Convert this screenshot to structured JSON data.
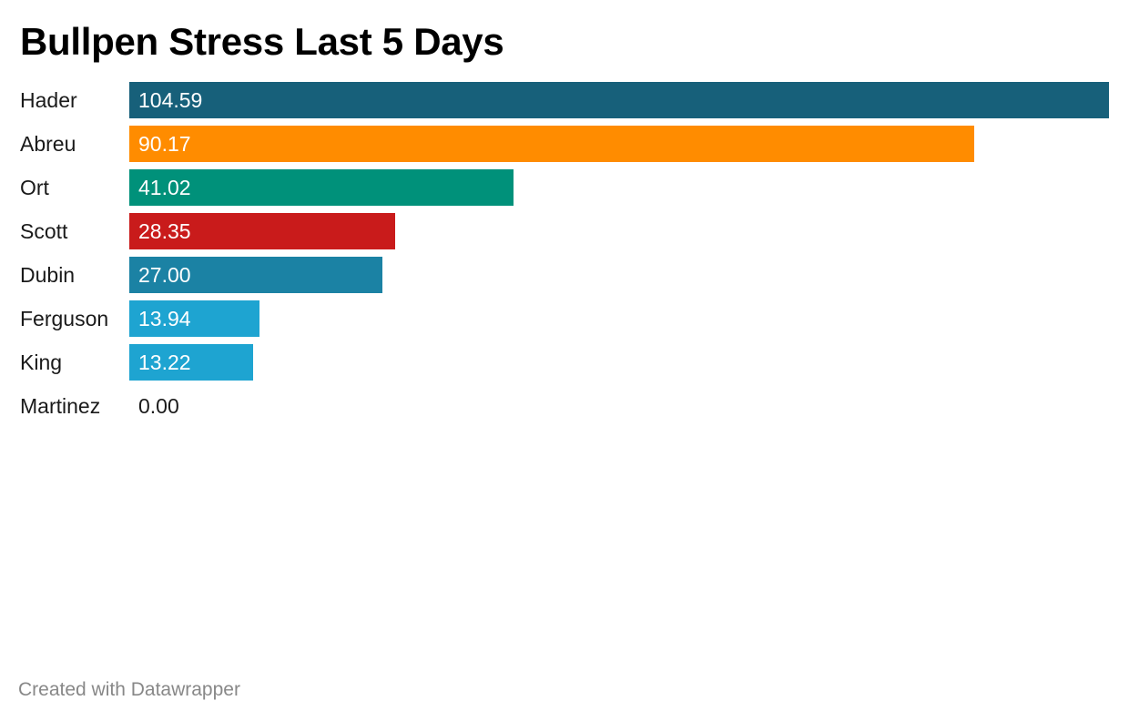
{
  "chart_data": {
    "type": "bar",
    "orientation": "horizontal",
    "title": "Bullpen Stress Last 5 Days",
    "categories": [
      "Hader",
      "Abreu",
      "Ort",
      "Scott",
      "Dubin",
      "Ferguson",
      "King",
      "Martinez"
    ],
    "values": [
      104.59,
      90.17,
      41.02,
      28.35,
      27.0,
      13.94,
      13.22,
      0.0
    ],
    "value_labels": [
      "104.59",
      "90.17",
      "41.02",
      "28.35",
      "27.00",
      "13.94",
      "13.22",
      "0.00"
    ],
    "colors": [
      "#17607a",
      "#ff8c00",
      "#00917a",
      "#c91b1b",
      "#1b82a4",
      "#1ea4d1",
      "#1ea4d1",
      "#1ea4d1"
    ],
    "xlim": [
      0,
      104.59
    ],
    "grid": false,
    "legend": "none",
    "value_label_color_inside": "#ffffff",
    "value_label_color_outside": "#1a1a1a"
  },
  "footer": {
    "credit": "Created with Datawrapper"
  }
}
